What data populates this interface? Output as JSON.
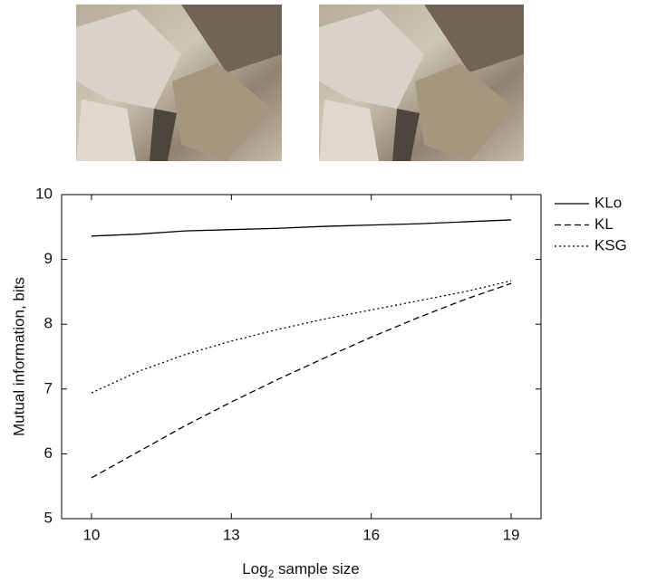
{
  "chart_data": {
    "type": "line",
    "ylabel": "Mutual information, bits",
    "xlabel": {
      "text": "Log",
      "subscript": "2",
      "rest": " sample size"
    },
    "x": [
      10,
      11,
      12,
      13,
      14,
      15,
      16,
      17,
      18,
      19
    ],
    "series": [
      {
        "name": "KLo",
        "color": "#000000",
        "dash": "solid",
        "values": [
          9.36,
          9.39,
          9.44,
          9.46,
          9.48,
          9.51,
          9.53,
          9.55,
          9.58,
          9.61
        ]
      },
      {
        "name": "KL",
        "color": "#000000",
        "dash": "dashed",
        "values": [
          5.63,
          6.03,
          6.43,
          6.8,
          7.15,
          7.48,
          7.8,
          8.1,
          8.38,
          8.63
        ]
      },
      {
        "name": "KSG",
        "color": "#000000",
        "dash": "dotted",
        "values": [
          6.94,
          7.27,
          7.53,
          7.74,
          7.92,
          8.08,
          8.22,
          8.36,
          8.5,
          8.67
        ]
      }
    ],
    "xlim": [
      9.36,
      19.64
    ],
    "xticks": [
      10,
      13,
      16,
      19
    ],
    "ylim": [
      5,
      10
    ],
    "yticks": [
      5,
      6,
      7,
      8,
      9,
      10
    ],
    "grid": false,
    "legend": "right"
  }
}
